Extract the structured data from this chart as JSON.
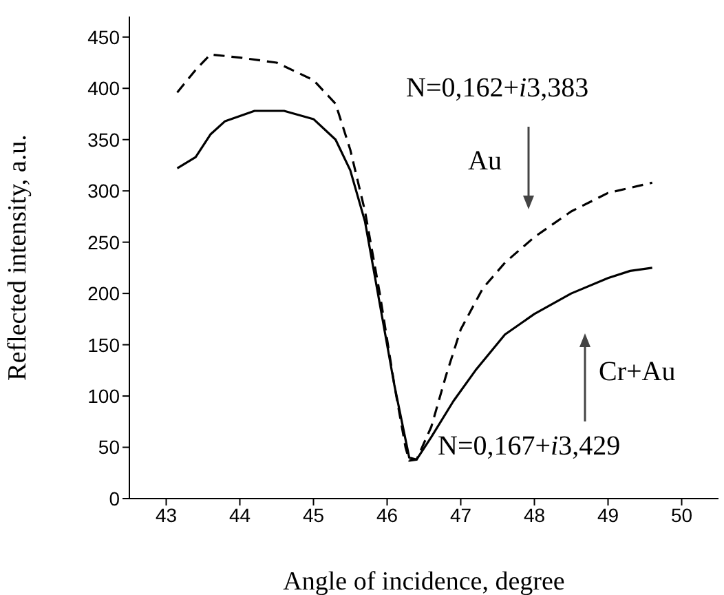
{
  "chart_data": {
    "type": "line",
    "xlabel": "Angle of incidence, degree",
    "ylabel": "Reflected intensity, a.u.",
    "xlim": [
      42.5,
      50.5
    ],
    "xticks": [
      43,
      44,
      45,
      46,
      47,
      48,
      49,
      50
    ],
    "ylim": [
      0,
      470
    ],
    "yticks": [
      0,
      50,
      100,
      150,
      200,
      250,
      300,
      350,
      400,
      450
    ],
    "marker": "none",
    "series": [
      {
        "color": "#000000",
        "line_style": "dashed",
        "x": [
          43.15,
          43.4,
          43.6,
          44,
          44.5,
          45,
          45.3,
          45.5,
          45.7,
          45.9,
          46.1,
          46.25,
          46.3,
          46.4,
          46.6,
          46.8,
          47,
          47.3,
          47.6,
          48,
          48.5,
          49,
          49.6
        ],
        "values": [
          396,
          418,
          433,
          430,
          425,
          408,
          385,
          340,
          280,
          200,
          110,
          50,
          37,
          38,
          70,
          120,
          165,
          205,
          230,
          255,
          280,
          298,
          308
        ]
      },
      {
        "color": "#000000",
        "line_style": "solid",
        "x": [
          43.15,
          43.4,
          43.6,
          43.8,
          44.2,
          44.6,
          45,
          45.3,
          45.5,
          45.7,
          45.9,
          46.1,
          46.3,
          46.4,
          46.6,
          46.9,
          47.2,
          47.6,
          48,
          48.5,
          49,
          49.3,
          49.6
        ],
        "values": [
          322,
          333,
          355,
          368,
          378,
          378,
          370,
          350,
          320,
          270,
          190,
          110,
          40,
          38,
          60,
          95,
          125,
          160,
          180,
          200,
          215,
          222,
          225
        ]
      }
    ],
    "annotations": [
      "N=0,162+i3,383",
      "Au",
      "Cr+Au",
      "N=0,167+i3,429"
    ]
  }
}
